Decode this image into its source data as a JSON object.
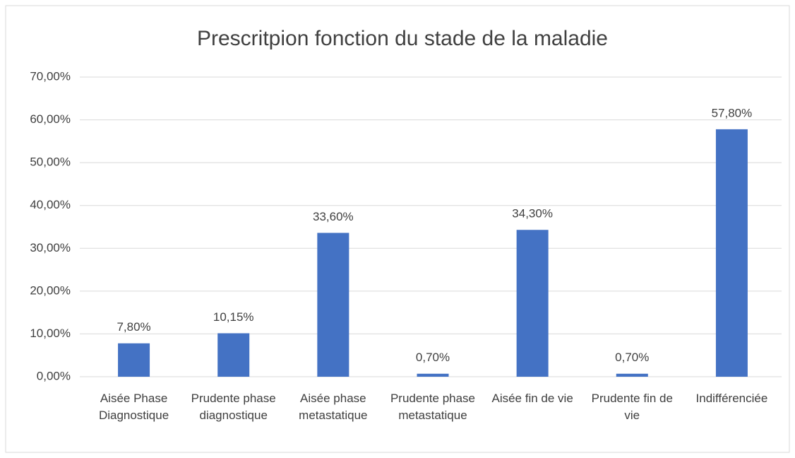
{
  "chart_data": {
    "type": "bar",
    "title": "Prescritpion fonction du stade de la maladie",
    "categories": [
      "Aisée Phase Diagnostique",
      "Prudente phase diagnostique",
      "Aisée phase metastatique",
      "Prudente phase metastatique",
      "Aisée fin de vie",
      "Prudente fin de vie",
      "Indifférenciée"
    ],
    "values": [
      7.8,
      10.15,
      33.6,
      0.7,
      34.3,
      0.7,
      57.8
    ],
    "value_labels": [
      "7,80%",
      "10,15%",
      "33,60%",
      "0,70%",
      "34,30%",
      "0,70%",
      "57,80%"
    ],
    "color": "#4472c4",
    "ylim": [
      0,
      70
    ],
    "yticks": [
      {
        "value": 0,
        "label": "0,00%"
      },
      {
        "value": 10,
        "label": "10,00%"
      },
      {
        "value": 20,
        "label": "20,00%"
      },
      {
        "value": 30,
        "label": "30,00%"
      },
      {
        "value": 40,
        "label": "40,00%"
      },
      {
        "value": 50,
        "label": "50,00%"
      },
      {
        "value": 60,
        "label": "60,00%"
      },
      {
        "value": 70,
        "label": "70,00%"
      }
    ],
    "grid": true
  }
}
